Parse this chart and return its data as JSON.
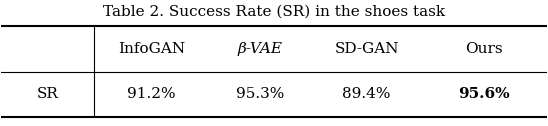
{
  "title": "Table 2. Success Rate (SR) in the shoes task",
  "col_headers": [
    "",
    "InfoGAN",
    "β-VAE",
    "SD-GAN",
    "Ours"
  ],
  "row_label": "SR",
  "row_values": [
    "91.2%",
    "95.3%",
    "89.4%",
    "95.6%"
  ],
  "bold_last": true,
  "bg_color": "#ffffff",
  "title_fontsize": 11,
  "cell_fontsize": 11,
  "figsize": [
    5.48,
    1.26
  ],
  "dpi": 100
}
